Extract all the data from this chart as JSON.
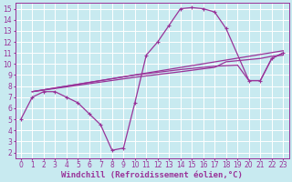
{
  "background_color": "#c8eaf0",
  "grid_color": "#ffffff",
  "line_color": "#993399",
  "marker": "+",
  "markersize": 3,
  "linewidth": 0.9,
  "xlabel": "Windchill (Refroidissement éolien,°C)",
  "xlabel_fontsize": 6.5,
  "tick_fontsize": 5.5,
  "xlim": [
    -0.5,
    23.5
  ],
  "ylim": [
    1.5,
    15.5
  ],
  "yticks": [
    2,
    3,
    4,
    5,
    6,
    7,
    8,
    9,
    10,
    11,
    12,
    13,
    14,
    15
  ],
  "xticks": [
    0,
    1,
    2,
    3,
    4,
    5,
    6,
    7,
    8,
    9,
    10,
    11,
    12,
    13,
    14,
    15,
    16,
    17,
    18,
    19,
    20,
    21,
    22,
    23
  ],
  "curve1": [
    [
      0,
      5.0
    ],
    [
      1,
      7.0
    ],
    [
      2,
      7.5
    ],
    [
      3,
      7.5
    ],
    [
      4,
      7.0
    ],
    [
      5,
      6.5
    ],
    [
      6,
      5.5
    ],
    [
      7,
      4.5
    ],
    [
      8,
      2.2
    ],
    [
      9,
      2.4
    ],
    [
      10,
      6.5
    ],
    [
      11,
      10.8
    ],
    [
      12,
      12.0
    ],
    [
      13,
      13.5
    ],
    [
      14,
      15.0
    ],
    [
      15,
      15.1
    ],
    [
      16,
      15.0
    ],
    [
      17,
      14.7
    ],
    [
      18,
      13.2
    ],
    [
      20,
      8.5
    ],
    [
      21,
      8.5
    ],
    [
      22,
      10.5
    ],
    [
      23,
      11.0
    ]
  ],
  "curve2": [
    [
      1,
      7.5
    ],
    [
      23,
      11.2
    ]
  ],
  "curve3": [
    [
      1,
      7.5
    ],
    [
      10,
      8.8
    ],
    [
      14,
      9.3
    ],
    [
      17,
      9.7
    ],
    [
      18,
      10.2
    ],
    [
      19,
      10.3
    ],
    [
      20,
      10.4
    ],
    [
      21,
      10.5
    ],
    [
      22,
      10.7
    ],
    [
      23,
      10.8
    ]
  ],
  "curve4": [
    [
      1,
      7.5
    ],
    [
      10,
      9.0
    ],
    [
      14,
      9.5
    ],
    [
      17,
      9.8
    ],
    [
      19,
      9.9
    ],
    [
      20,
      8.5
    ],
    [
      21,
      8.5
    ],
    [
      22,
      10.5
    ],
    [
      23,
      11.0
    ]
  ]
}
